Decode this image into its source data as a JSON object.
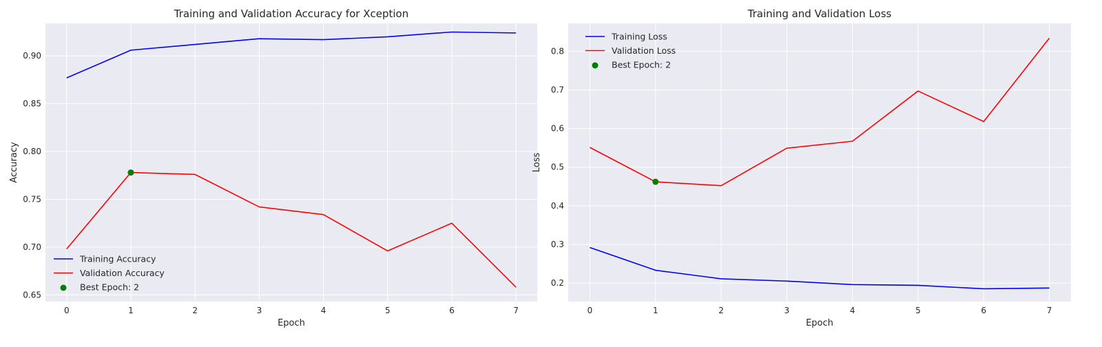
{
  "chart_data": [
    {
      "type": "line",
      "title": "Training and Validation Accuracy for Xception",
      "xlabel": "Epoch",
      "ylabel": "Accuracy",
      "x": [
        0,
        1,
        2,
        3,
        4,
        5,
        6,
        7
      ],
      "xlim": [
        -0.33,
        7.33
      ],
      "ylim": [
        0.643,
        0.934
      ],
      "xticks": [
        "0",
        "1",
        "2",
        "3",
        "4",
        "5",
        "6",
        "7"
      ],
      "yticks": [
        "0.65",
        "0.70",
        "0.75",
        "0.80",
        "0.85",
        "0.90"
      ],
      "grid": true,
      "legend_position": "bottom-left",
      "series": [
        {
          "name": "Training Accuracy",
          "color": "#0000ff",
          "values": [
            0.877,
            0.906,
            0.912,
            0.918,
            0.917,
            0.92,
            0.925,
            0.924
          ]
        },
        {
          "name": "Validation Accuracy",
          "color": "#ff0000",
          "values": [
            0.698,
            0.778,
            0.776,
            0.742,
            0.734,
            0.696,
            0.725,
            0.658
          ]
        }
      ],
      "marker": {
        "name": "Best Epoch: 2",
        "color": "#008000",
        "x": 1,
        "y": 0.778
      }
    },
    {
      "type": "line",
      "title": "Training and Validation Loss",
      "xlabel": "Epoch",
      "ylabel": "Loss",
      "x": [
        0,
        1,
        2,
        3,
        4,
        5,
        6,
        7
      ],
      "xlim": [
        -0.33,
        7.33
      ],
      "ylim": [
        0.152,
        0.872
      ],
      "xticks": [
        "0",
        "1",
        "2",
        "3",
        "4",
        "5",
        "6",
        "7"
      ],
      "yticks": [
        "0.2",
        "0.3",
        "0.4",
        "0.5",
        "0.6",
        "0.7",
        "0.8"
      ],
      "grid": true,
      "legend_position": "top-left",
      "series": [
        {
          "name": "Training Loss",
          "color": "#0000ff",
          "values": [
            0.292,
            0.233,
            0.211,
            0.205,
            0.196,
            0.194,
            0.185,
            0.187
          ]
        },
        {
          "name": "Validation Loss",
          "color": "#ff0000",
          "values": [
            0.551,
            0.462,
            0.452,
            0.549,
            0.567,
            0.697,
            0.618,
            0.834
          ]
        }
      ],
      "marker": {
        "name": "Best Epoch: 2",
        "color": "#008000",
        "x": 1,
        "y": 0.462
      }
    }
  ]
}
